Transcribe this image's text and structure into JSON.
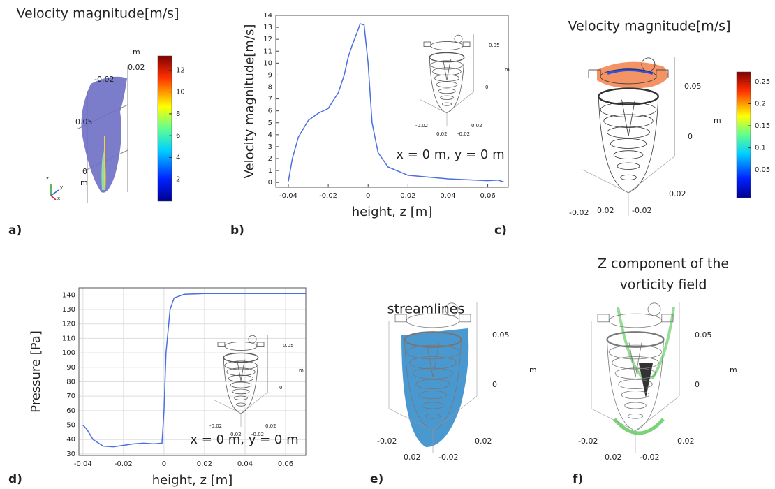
{
  "chart_data": [
    {
      "type": "line",
      "xlabel": "height, z [m]",
      "ylabel": "Velocity magnitude[m/s]",
      "annotation": "x = 0 m, y = 0 m",
      "color": "#4a6fe3",
      "grid": false,
      "x": [
        -0.04,
        -0.038,
        -0.035,
        -0.03,
        -0.025,
        -0.02,
        -0.017,
        -0.015,
        -0.012,
        -0.01,
        -0.008,
        -0.005,
        -0.004,
        -0.002,
        0,
        0.002,
        0.005,
        0.01,
        0.02,
        0.04,
        0.06,
        0.065,
        0.068
      ],
      "values": [
        0.1,
        2,
        3.8,
        5.2,
        5.8,
        6.2,
        7,
        7.5,
        9,
        10.5,
        11.5,
        12.8,
        13.3,
        13.2,
        10,
        5,
        2.5,
        1.3,
        0.6,
        0.3,
        0.15,
        0.2,
        0.05
      ],
      "xlim": [
        -0.0463,
        0.0703
      ],
      "xticks": [
        -0.04,
        -0.02,
        0,
        0.02,
        0.04,
        0.06
      ],
      "ylim": [
        -0.4,
        14
      ],
      "yticks": [
        0,
        1,
        2,
        3,
        4,
        5,
        6,
        7,
        8,
        9,
        10,
        11,
        12,
        13,
        14
      ],
      "inset_labels": [
        "0.05",
        "m",
        "0",
        "-0.02",
        "0.02",
        "0.02",
        "-0.02"
      ]
    },
    {
      "type": "line",
      "xlabel": "height, z [m]",
      "ylabel": "Pressure [Pa]",
      "annotation": "x = 0 m, y = 0 m",
      "color": "#4a6fe3",
      "grid": true,
      "x": [
        -0.04,
        -0.038,
        -0.035,
        -0.03,
        -0.025,
        -0.02,
        -0.015,
        -0.01,
        -0.005,
        -0.001,
        0,
        0.001,
        0.003,
        0.005,
        0.01,
        0.02,
        0.07
      ],
      "values": [
        50,
        47,
        40,
        35.5,
        35,
        36,
        37,
        37.5,
        37,
        37.5,
        60,
        100,
        130,
        138,
        140.5,
        141,
        141
      ],
      "xlim": [
        -0.042,
        0.07
      ],
      "xticks": [
        -0.04,
        -0.02,
        0,
        0.02,
        0.04,
        0.06
      ],
      "ylim": [
        29,
        145
      ],
      "yticks": [
        30,
        40,
        50,
        60,
        70,
        80,
        90,
        100,
        110,
        120,
        130,
        140
      ],
      "inset_labels": [
        "0.05",
        "m",
        "0",
        "-0.02",
        "0.02",
        "0.02",
        "-0.02"
      ]
    }
  ],
  "figure": {
    "panel_labels": [
      "a)",
      "b)",
      "c)",
      "d)",
      "e)",
      "f)"
    ],
    "panels": [
      {
        "title": [
          "Velocity magnitude[m/s]"
        ],
        "axis_labels": [
          "m",
          "0.02",
          "-0.02",
          "0.05",
          "0",
          "m"
        ],
        "triad": [
          "z",
          "y",
          "x"
        ],
        "colorbar": {
          "lim": [
            0,
            13.3
          ],
          "ticks": [
            2,
            4,
            6,
            8,
            10,
            12
          ]
        }
      },
      {
        "title": [
          "Velocity magnitude[m/s]"
        ],
        "axis_labels": [
          "0.05",
          "m",
          "0",
          "-0.02",
          "0.02",
          "0.02",
          "-0.02"
        ],
        "colorbar": {
          "lim": [
            -0.013,
            0.272
          ],
          "ticks": [
            0.05,
            0.1,
            0.15,
            0.2,
            0.25
          ]
        }
      },
      {
        "title": [
          "streamlines"
        ],
        "axis_labels": [
          "0.05",
          "m",
          "0",
          "-0.02",
          "0.02",
          "0.02",
          "-0.02"
        ]
      },
      {
        "title": [
          "Z component of the",
          "vorticity field"
        ],
        "axis_labels": [
          "0.05",
          "m",
          "0",
          "-0.02",
          "0.02",
          "0.02",
          "-0.02"
        ]
      }
    ]
  }
}
